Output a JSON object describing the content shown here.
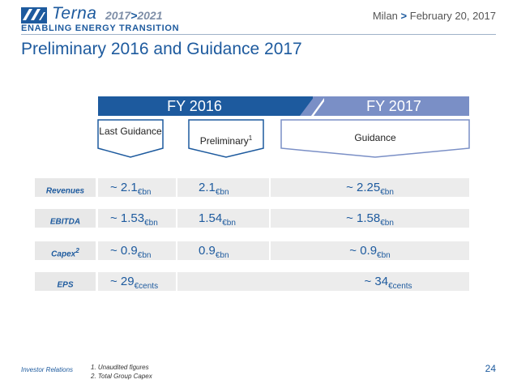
{
  "header": {
    "brand_name": "Terna",
    "brand_years_from": "2017",
    "brand_years_sep": ">",
    "brand_years_to": "2021",
    "tagline": "ENABLING ENERGY TRANSITION",
    "location": "Milan",
    "date_sep": ">",
    "date": "February 20, 2017",
    "title": "Preliminary 2016 and Guidance 2017"
  },
  "band": {
    "fy2016": "FY 2016",
    "fy2017": "FY 2017"
  },
  "columns": {
    "last_guidance": "Last Guidance",
    "preliminary": "Preliminary",
    "preliminary_sup": "1",
    "guidance": "Guidance"
  },
  "rows": [
    {
      "label": "Revenues",
      "label_sup": "",
      "last": "~ 2.1",
      "last_unit": "€bn",
      "prelim": "2.1",
      "prelim_unit": "€bn",
      "guid": "~ 2.25",
      "guid_unit": "€bn"
    },
    {
      "label": "EBITDA",
      "label_sup": "",
      "last": "~ 1.53",
      "last_unit": "€bn",
      "prelim": "1.54",
      "prelim_unit": "€bn",
      "guid": "~ 1.58",
      "guid_unit": "€bn"
    },
    {
      "label": "Capex",
      "label_sup": "2",
      "last": "~ 0.9",
      "last_unit": "€bn",
      "prelim": "0.9",
      "prelim_unit": "€bn",
      "guid": "~ 0.9",
      "guid_unit": "€bn"
    },
    {
      "label": "EPS",
      "label_sup": "",
      "last": "~ 29",
      "last_unit": "€cents",
      "prelim": "",
      "prelim_unit": "",
      "guid": "~ 34",
      "guid_unit": "€cents"
    }
  ],
  "footer": {
    "left": "Investor Relations",
    "notes": [
      "1.    Unaudited figures",
      "2.    Total Group Capex"
    ],
    "page": "24"
  },
  "colors": {
    "brand_blue": "#1d5a9e",
    "band_2017": "#7a8fc6",
    "cell_bg": "#ececec"
  }
}
